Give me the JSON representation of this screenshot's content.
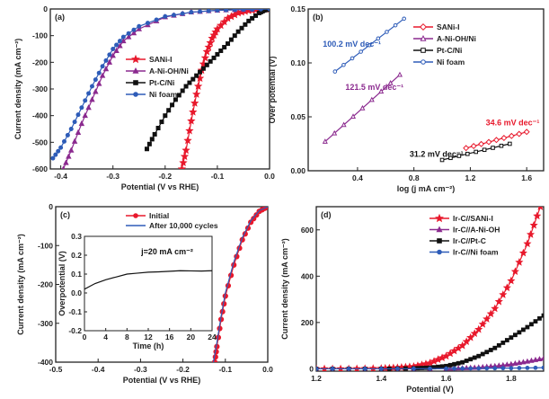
{
  "chart_data": [
    {
      "panel": "(a)",
      "type": "line",
      "xlabel": "Potential (V vs RHE)",
      "ylabel": "Current density (mA cm⁻²)",
      "xlim": [
        -0.42,
        0.0
      ],
      "ylim": [
        -600,
        0
      ],
      "xticks": [
        -0.4,
        -0.3,
        -0.2,
        -0.1,
        0.0
      ],
      "yticks": [
        0,
        -100,
        -200,
        -300,
        -400,
        -500,
        -600
      ],
      "legend_position": "center-right",
      "series": [
        {
          "name": "SANi-I",
          "color": "#e8192c",
          "marker": "star",
          "x": [
            0.0,
            -0.02,
            -0.04,
            -0.06,
            -0.08,
            -0.1,
            -0.11,
            -0.12,
            -0.13,
            -0.14,
            -0.15,
            -0.16,
            -0.168
          ],
          "y": [
            0,
            -2,
            -6,
            -15,
            -35,
            -75,
            -110,
            -160,
            -230,
            -320,
            -420,
            -530,
            -600
          ]
        },
        {
          "name": "A-Ni-OH/Ni",
          "color": "#8b2a8f",
          "marker": "triangle",
          "x": [
            0.0,
            -0.05,
            -0.1,
            -0.15,
            -0.2,
            -0.25,
            -0.28,
            -0.3,
            -0.32,
            -0.34,
            -0.36,
            -0.38,
            -0.395
          ],
          "y": [
            0,
            -2,
            -5,
            -12,
            -30,
            -75,
            -120,
            -175,
            -250,
            -340,
            -430,
            -530,
            -600
          ]
        },
        {
          "name": "Pt-C/Ni",
          "color": "#111111",
          "marker": "square",
          "x": [
            0.0,
            -0.01,
            -0.02,
            -0.04,
            -0.06,
            -0.08,
            -0.1,
            -0.12,
            -0.14,
            -0.16,
            -0.18,
            -0.2,
            -0.22,
            -0.235
          ],
          "y": [
            0,
            -5,
            -15,
            -45,
            -85,
            -130,
            -170,
            -210,
            -250,
            -290,
            -340,
            -400,
            -470,
            -525
          ]
        },
        {
          "name": "Ni foam",
          "color": "#2e5cb8",
          "marker": "circle",
          "x": [
            0.0,
            -0.05,
            -0.1,
            -0.15,
            -0.2,
            -0.25,
            -0.28,
            -0.3,
            -0.32,
            -0.34,
            -0.36,
            -0.38,
            -0.4,
            -0.415
          ],
          "y": [
            0,
            -2,
            -5,
            -12,
            -28,
            -65,
            -105,
            -150,
            -215,
            -290,
            -370,
            -450,
            -520,
            -560
          ]
        }
      ]
    },
    {
      "panel": "(b)",
      "type": "line",
      "xlabel": "log (j mA cm⁻²)",
      "ylabel": "Over potential (V)",
      "xlim": [
        0.05,
        1.72
      ],
      "ylim": [
        0.0,
        0.15
      ],
      "xticks": [
        0.4,
        0.8,
        1.2,
        1.6
      ],
      "yticks": [
        0.0,
        0.05,
        0.1,
        0.15
      ],
      "legend_position": "top-right",
      "series": [
        {
          "name": "SANi-I",
          "color": "#e8192c",
          "marker": "diamond",
          "x": [
            1.17,
            1.6
          ],
          "y": [
            0.021,
            0.036
          ]
        },
        {
          "name": "A-Ni-OH/Ni",
          "color": "#8b2a8f",
          "marker": "triangle",
          "x": [
            0.17,
            0.7
          ],
          "y": [
            0.027,
            0.089
          ]
        },
        {
          "name": "Pt-C/Ni",
          "color": "#111111",
          "marker": "square",
          "x": [
            1.0,
            1.48
          ],
          "y": [
            0.01,
            0.025
          ]
        },
        {
          "name": "Ni foam",
          "color": "#2e5cb8",
          "marker": "circle",
          "x": [
            0.24,
            0.73
          ],
          "y": [
            0.092,
            0.141
          ]
        }
      ],
      "annotations": [
        {
          "text": "100.2 mV dec⁻¹",
          "color": "#2e5cb8"
        },
        {
          "text": "121.5 mV dec⁻¹",
          "color": "#8b2a8f"
        },
        {
          "text": "34.6 mV dec⁻¹",
          "color": "#e8192c"
        },
        {
          "text": "31.2 mV dec⁻¹",
          "color": "#111111"
        }
      ]
    },
    {
      "panel": "(c)",
      "type": "line",
      "xlabel": "Potential (V vs RHE)",
      "ylabel": "Current density (mA cm⁻²)",
      "xlim": [
        -0.5,
        0.0
      ],
      "ylim": [
        -400,
        0
      ],
      "xticks": [
        -0.5,
        -0.4,
        -0.3,
        -0.2,
        -0.1,
        0.0
      ],
      "yticks": [
        0,
        -100,
        -200,
        -300,
        -400
      ],
      "legend_position": "top-center",
      "series": [
        {
          "name": "Initial",
          "color": "#e8192c",
          "marker": "circle",
          "x": [
            0.0,
            -0.02,
            -0.04,
            -0.06,
            -0.08,
            -0.1,
            -0.11,
            -0.12,
            -0.125
          ],
          "y": [
            0,
            -12,
            -40,
            -85,
            -150,
            -230,
            -290,
            -360,
            -400
          ]
        },
        {
          "name": "After 10,000 cycles",
          "color": "#2e5cb8",
          "marker": "none",
          "x": [
            0.0,
            -0.02,
            -0.04,
            -0.06,
            -0.08,
            -0.1,
            -0.11,
            -0.12,
            -0.128
          ],
          "y": [
            0,
            -10,
            -36,
            -80,
            -142,
            -222,
            -282,
            -350,
            -400
          ]
        }
      ],
      "inset": {
        "xlabel": "Time (h)",
        "ylabel": "Overpotential (V)",
        "xlim": [
          0,
          24
        ],
        "ylim": [
          -0.2,
          0.3
        ],
        "xticks": [
          0,
          4,
          8,
          12,
          16,
          20,
          24
        ],
        "yticks": [
          -0.2,
          -0.1,
          0.0,
          0.1,
          0.2,
          0.3
        ],
        "annotation": "j=20 mA cm⁻²",
        "series": [
          {
            "color": "#111111",
            "x": [
              0,
              1,
              2,
              4,
              6,
              8,
              10,
              12,
              14,
              16,
              18,
              20,
              22,
              24
            ],
            "y": [
              0.02,
              0.035,
              0.05,
              0.07,
              0.085,
              0.1,
              0.105,
              0.11,
              0.112,
              0.115,
              0.118,
              0.117,
              0.116,
              0.118
            ]
          }
        ]
      }
    },
    {
      "panel": "(d)",
      "type": "line",
      "xlabel": "Potential (V)",
      "ylabel": "Current density (mA cm⁻²)",
      "xlim": [
        1.2,
        1.9
      ],
      "ylim": [
        -10,
        700
      ],
      "xticks": [
        1.2,
        1.4,
        1.6,
        1.8
      ],
      "yticks": [
        0,
        200,
        400,
        600
      ],
      "legend_position": "top-right",
      "series": [
        {
          "name": "Ir-C//SANi-I",
          "color": "#e8192c",
          "marker": "star",
          "x": [
            1.2,
            1.3,
            1.4,
            1.45,
            1.5,
            1.55,
            1.6,
            1.65,
            1.7,
            1.75,
            1.8,
            1.85,
            1.89
          ],
          "y": [
            0,
            0,
            2,
            5,
            10,
            25,
            55,
            100,
            170,
            260,
            380,
            540,
            700
          ]
        },
        {
          "name": "Ir-C//A-Ni-OH",
          "color": "#8b2a8f",
          "marker": "triangle",
          "x": [
            1.2,
            1.4,
            1.6,
            1.65,
            1.7,
            1.75,
            1.8,
            1.85,
            1.9
          ],
          "y": [
            0,
            0,
            1,
            3,
            6,
            12,
            20,
            32,
            45
          ]
        },
        {
          "name": "Ir-C//Pt-C",
          "color": "#111111",
          "marker": "square",
          "x": [
            1.2,
            1.4,
            1.5,
            1.55,
            1.6,
            1.65,
            1.7,
            1.75,
            1.8,
            1.85,
            1.9
          ],
          "y": [
            0,
            0,
            2,
            5,
            12,
            28,
            55,
            90,
            135,
            180,
            230
          ]
        },
        {
          "name": "Ir-C//Ni foam",
          "color": "#2e5cb8",
          "marker": "circle",
          "x": [
            1.2,
            1.4,
            1.6,
            1.7,
            1.8,
            1.9
          ],
          "y": [
            0,
            0,
            1,
            2,
            3,
            5
          ]
        }
      ]
    }
  ]
}
